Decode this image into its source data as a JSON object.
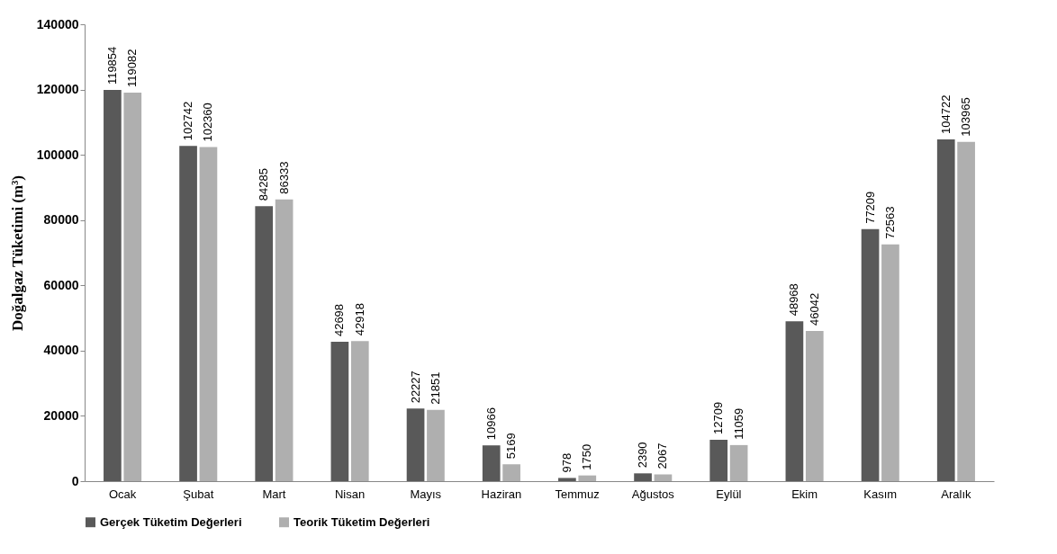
{
  "chart_data": {
    "type": "bar",
    "ylabel": "Doğalgaz Tüketimi (m³)",
    "categories": [
      "Ocak",
      "Şubat",
      "Mart",
      "Nisan",
      "Mayıs",
      "Haziran",
      "Temmuz",
      "Ağustos",
      "Eylül",
      "Ekim",
      "Kasım",
      "Aralık"
    ],
    "series": [
      {
        "name": "Gerçek Tüketim Değerleri",
        "color": "#595959",
        "values": [
          119854,
          102742,
          84285,
          42698,
          22227,
          10966,
          978,
          2390,
          12709,
          48968,
          77209,
          104722
        ]
      },
      {
        "name": "Teorik Tüketim Değerleri",
        "color": "#afafaf",
        "values": [
          119082,
          102360,
          86333,
          42918,
          21851,
          5169,
          1750,
          2067,
          11059,
          46042,
          72563,
          103965
        ]
      }
    ],
    "ylim": [
      0,
      140000
    ],
    "yticks": [
      0,
      20000,
      40000,
      60000,
      80000,
      100000,
      120000,
      140000
    ],
    "data_labels": true,
    "legend": "bottom"
  }
}
